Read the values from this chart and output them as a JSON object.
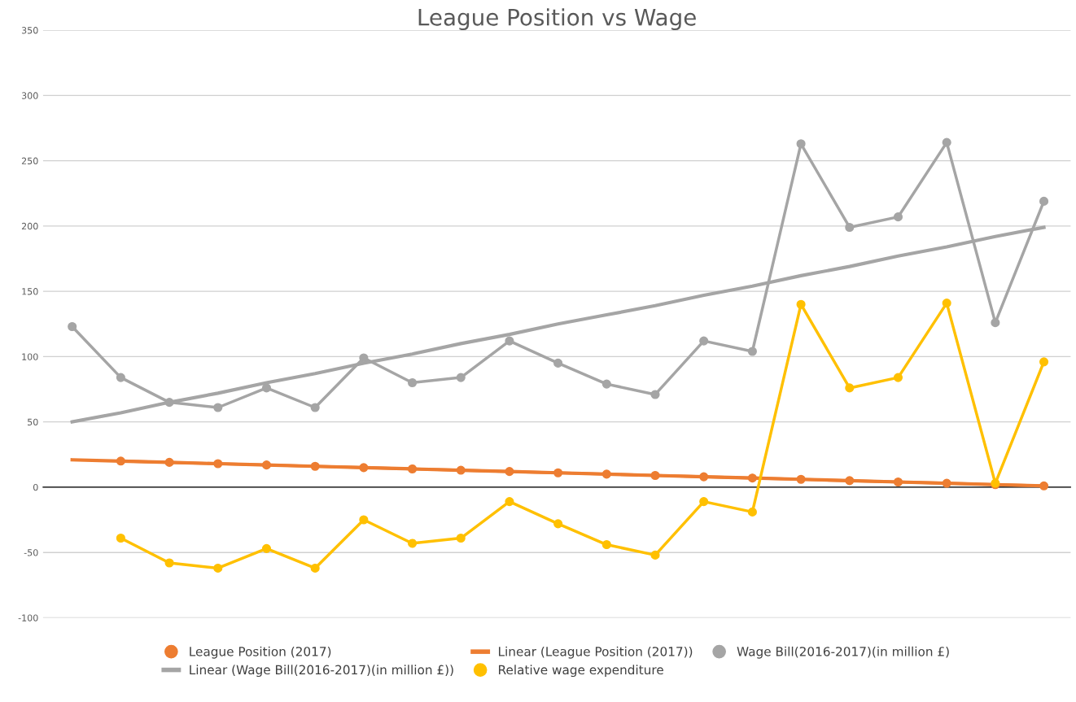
{
  "chart_data": {
    "type": "line",
    "title": "League Position vs Wage",
    "categories": [
      null,
      null,
      null,
      null,
      null,
      null,
      null,
      null,
      null,
      null,
      null,
      null,
      null,
      null,
      null,
      null,
      null,
      null,
      null,
      null,
      null
    ],
    "series": [
      {
        "name": "League Position (2017)",
        "color": "#ed7d31",
        "marker": "circle",
        "values": [
          null,
          20,
          19,
          18,
          17,
          16,
          15,
          14,
          13,
          12,
          11,
          10,
          9,
          8,
          7,
          6,
          5,
          4,
          3,
          2,
          1
        ]
      },
      {
        "name": "Linear (League Position (2017))",
        "color": "#ed7d31",
        "marker": "none",
        "values": [
          21,
          20,
          19,
          18,
          17,
          16,
          15,
          14,
          13,
          12,
          11,
          10,
          9,
          8,
          7,
          6,
          5,
          4,
          3,
          2,
          1
        ]
      },
      {
        "name": "Wage Bill(2016-2017)(in million £)",
        "color": "#a5a5a5",
        "marker": "circle",
        "values": [
          123,
          84,
          65,
          61,
          76,
          61,
          99,
          80,
          84,
          112,
          95,
          79,
          71,
          112,
          104,
          263,
          199,
          207,
          264,
          126,
          219
        ]
      },
      {
        "name": "Linear (Wage Bill(2016-2017)(in million £))",
        "color": "#a5a5a5",
        "marker": "none",
        "values": [
          50,
          57,
          65,
          72,
          80,
          87,
          95,
          102,
          110,
          117,
          125,
          132,
          139,
          147,
          154,
          162,
          169,
          177,
          184,
          192,
          199
        ]
      },
      {
        "name": "Relative wage expenditure",
        "color": "#ffc000",
        "marker": "circle",
        "values": [
          null,
          -39,
          -58,
          -62,
          -47,
          -62,
          -25,
          -43,
          -39,
          -11,
          -28,
          -44,
          -52,
          -11,
          -19,
          140,
          76,
          84,
          141,
          3,
          96
        ]
      }
    ],
    "ylim": [
      -100,
      350
    ],
    "yticks": [
      -100,
      -50,
      0,
      50,
      100,
      150,
      200,
      250,
      300,
      350
    ],
    "grid": "y",
    "legend": "bottom"
  }
}
